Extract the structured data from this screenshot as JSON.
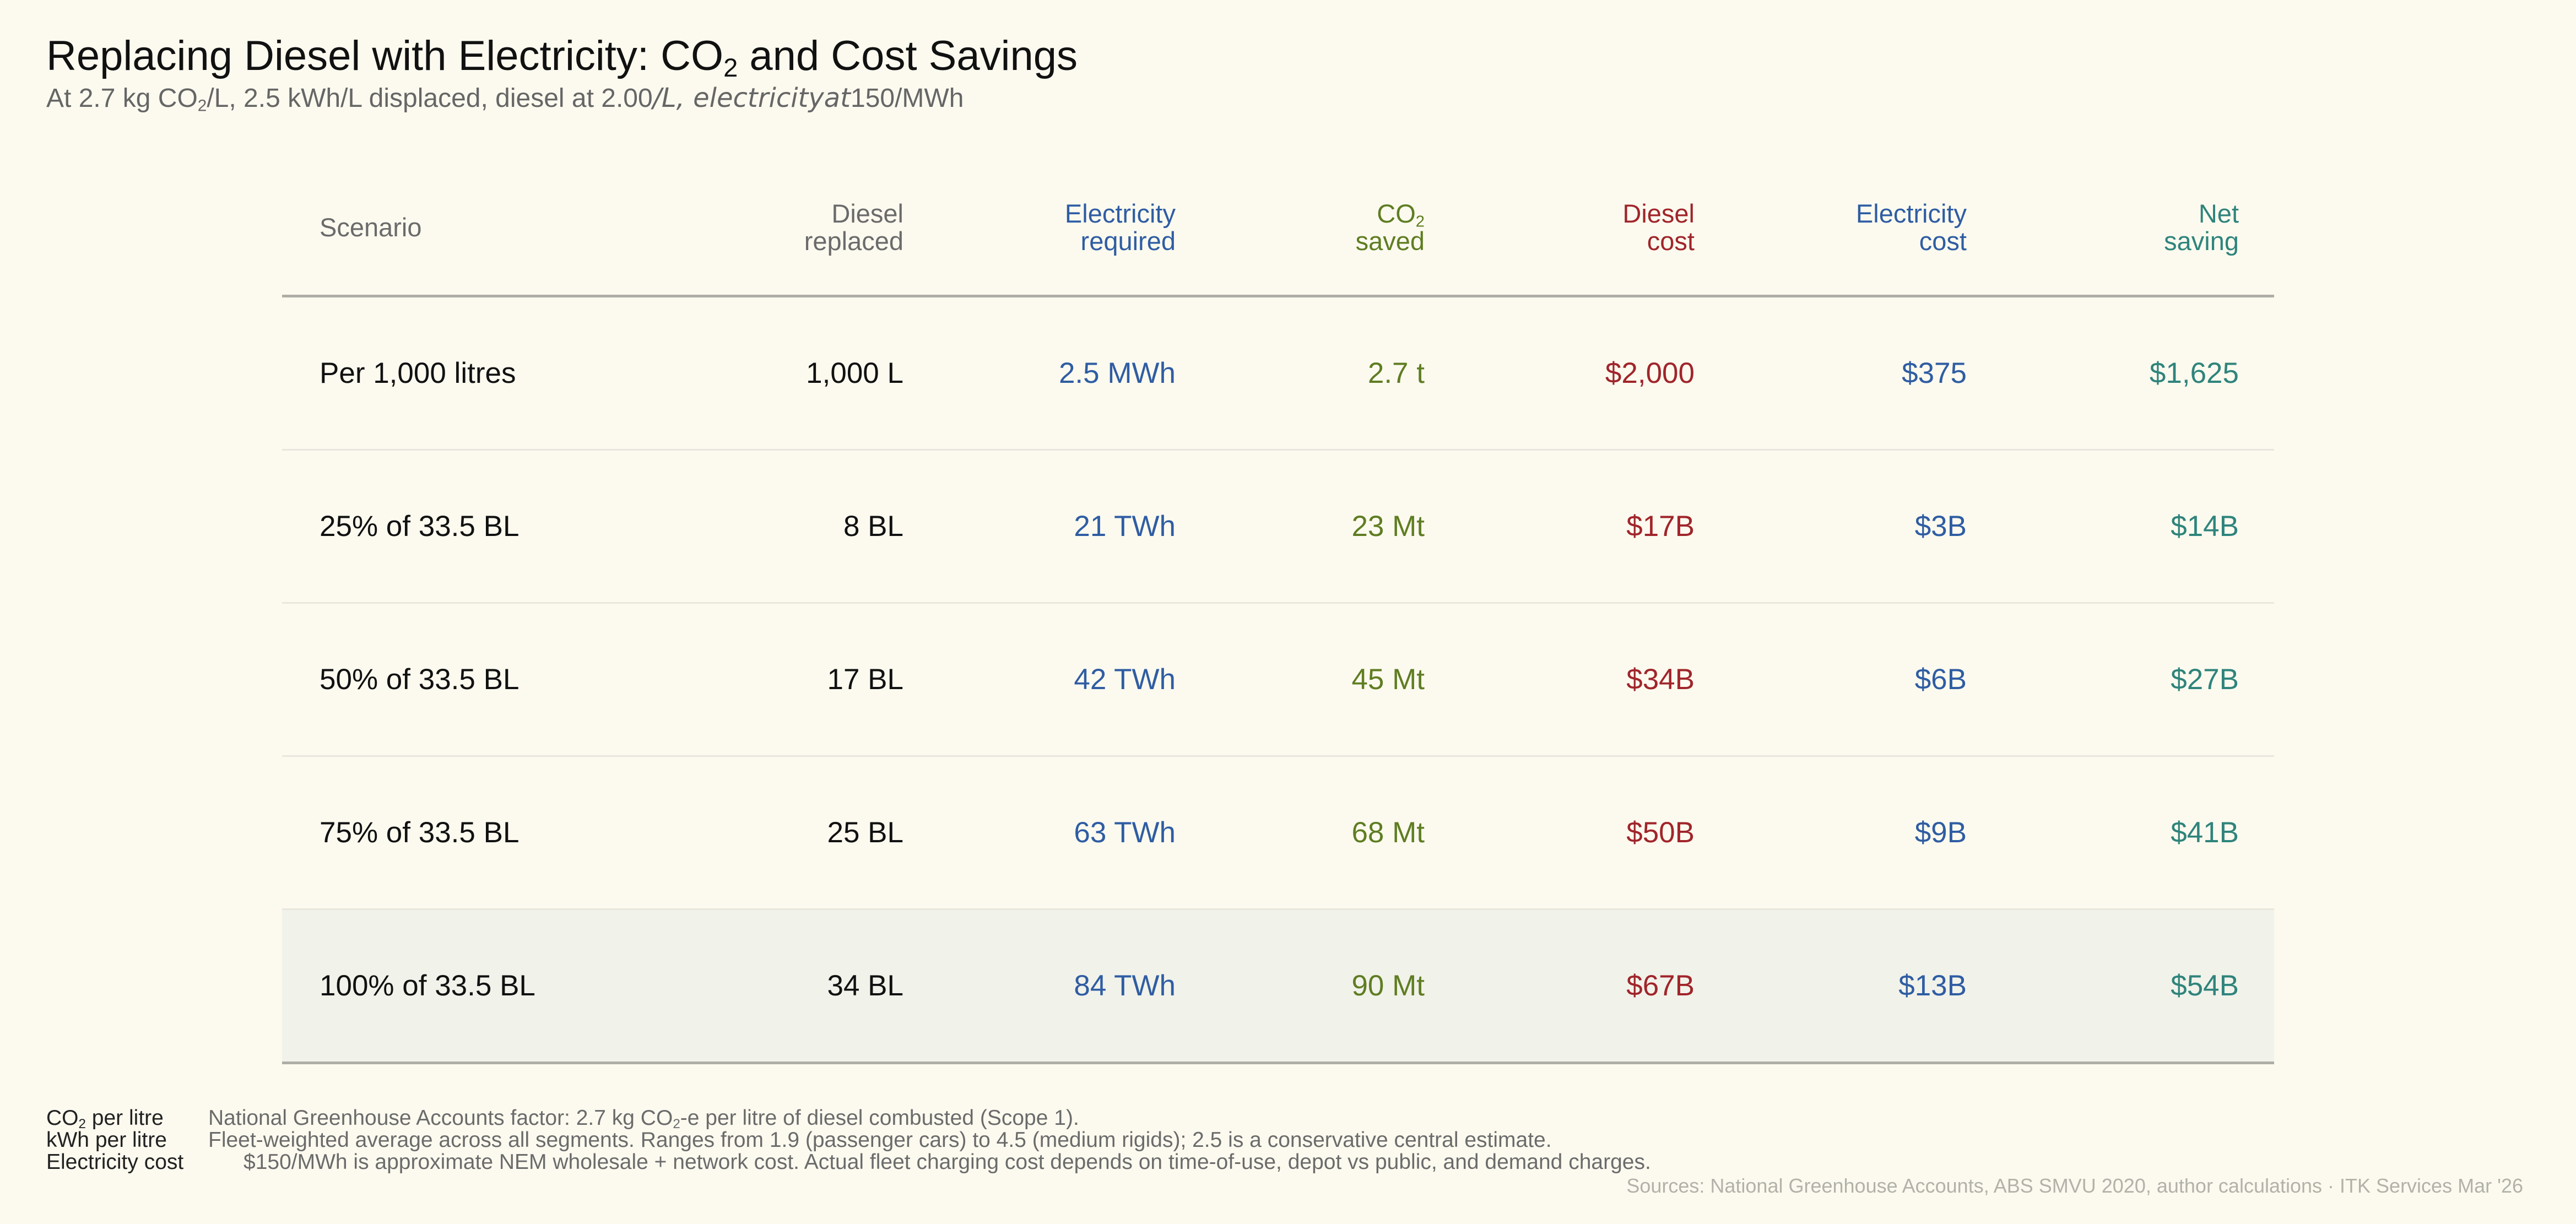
{
  "title": {
    "pre": "Replacing Diesel with Electricity: CO",
    "sub": "2",
    "post": " and Cost Savings"
  },
  "subtitle": {
    "a": "At 2.7 kg CO",
    "sub": "2",
    "b": "/L, 2.5 kWh/L displaced, diesel at 2.00",
    "c": "/L, electricityat",
    "d": "150/MWh"
  },
  "headers": [
    [
      "Scenario",
      ""
    ],
    [
      "Diesel",
      "replaced"
    ],
    [
      "Electricity",
      "required"
    ],
    [
      "CO",
      "saved"
    ],
    [
      "Diesel",
      "cost"
    ],
    [
      "Electricity",
      "cost"
    ],
    [
      "Net",
      "saving"
    ]
  ],
  "rows": [
    [
      "Per 1,000 litres",
      "1,000 L",
      "2.5 MWh",
      "2.7 t",
      "$2,000",
      "$375",
      "$1,625"
    ],
    [
      "25% of 33.5 BL",
      "8 BL",
      "21 TWh",
      "23 Mt",
      "$17B",
      "$3B",
      "$14B"
    ],
    [
      "50% of 33.5 BL",
      "17 BL",
      "42 TWh",
      "45 Mt",
      "$34B",
      "$6B",
      "$27B"
    ],
    [
      "75% of 33.5 BL",
      "25 BL",
      "63 TWh",
      "68 Mt",
      "$50B",
      "$9B",
      "$41B"
    ],
    [
      "100% of 33.5 BL",
      "34 BL",
      "84 TWh",
      "90 Mt",
      "$67B",
      "$13B",
      "$54B"
    ]
  ],
  "notes": [
    {
      "k": "CO",
      "k_sub": "2",
      "k_post": " per litre",
      "v": "National Greenhouse Accounts factor: 2.7 kg CO",
      "v_sub": "2",
      "v_post": "-e per litre of diesel combusted (Scope 1)."
    },
    {
      "k": "kWh per litre",
      "v": "Fleet-weighted average across all segments. Ranges from 1.9 (passenger cars) to 4.5 (medium rigids); 2.5 is a conservative central estimate."
    },
    {
      "k": "Electricity cost",
      "v": "$150/MWh is approximate NEM wholesale + network cost. Actual fleet charging cost depends on time-of-use, depot vs public, and demand charges."
    }
  ],
  "source": "Sources: National Greenhouse Accounts, ABS SMVU 2020, author calculations  ·  ITK Services Mar '26",
  "colors": {
    "background": "#fcfaef",
    "electricity": "#2f5da3",
    "co2": "#5f7d22",
    "diesel_cost": "#a0252a",
    "net_saving": "#2f847c",
    "highlight_row": "#f1f2ea"
  }
}
